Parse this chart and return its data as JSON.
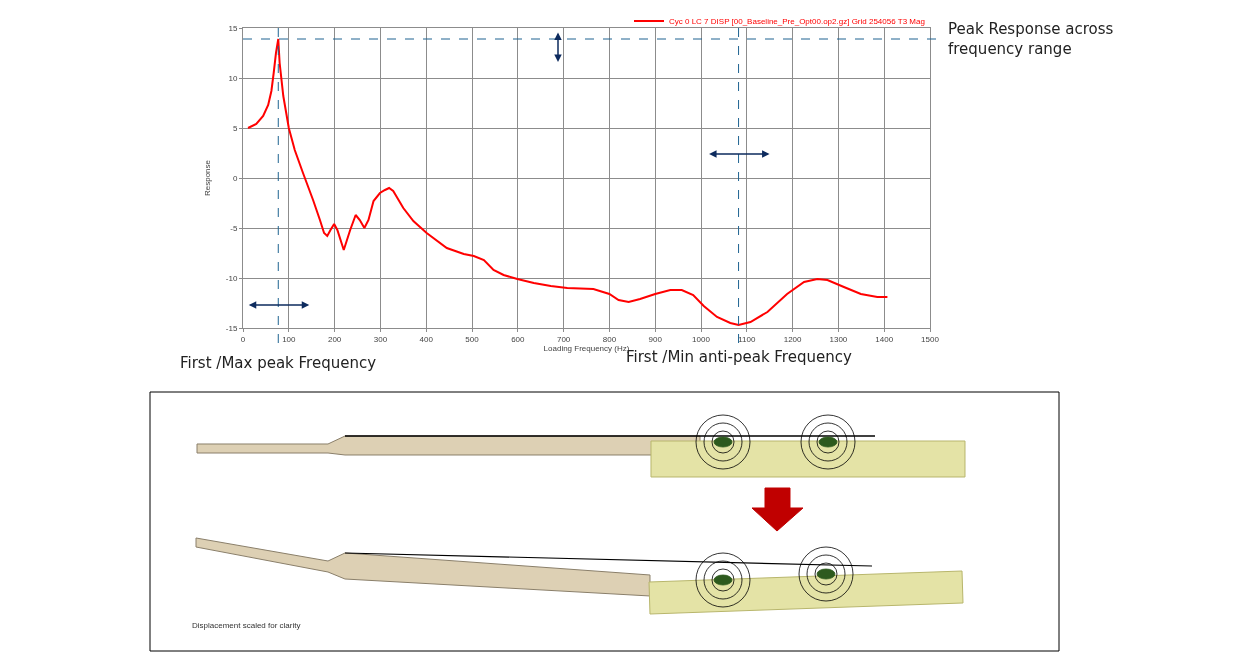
{
  "chart_data": {
    "type": "line",
    "xlabel": "Loading Frequency (Hz)",
    "ylabel": "Response",
    "xlim": [
      0,
      1500
    ],
    "xticks": [
      0,
      100,
      200,
      300,
      400,
      500,
      600,
      700,
      800,
      900,
      1000,
      1100,
      1200,
      1300,
      1400,
      1500
    ],
    "ylim": [
      -15,
      15
    ],
    "yticks": [
      -15,
      -10,
      -5,
      0,
      5,
      10,
      15
    ],
    "grid": true,
    "legend": "top right",
    "series": [
      {
        "name": "Cyc 0 LC 7 DISP [00_Baseline_Pre_Opt00.op2.gz] Grid 254056 T3 Mag",
        "color": "#ff0000",
        "x": [
          11,
          29,
          44,
          55,
          62,
          67,
          72,
          77,
          80,
          88,
          100,
          113,
          131,
          153,
          168,
          177,
          184,
          191,
          199,
          206,
          220,
          234,
          246,
          255,
          265,
          274,
          285,
          299,
          310,
          319,
          328,
          350,
          372,
          401,
          445,
          482,
          504,
          526,
          547,
          569,
          599,
          635,
          672,
          708,
          765,
          800,
          820,
          842,
          867,
          900,
          933,
          958,
          983,
          1006,
          1035,
          1064,
          1082,
          1108,
          1145,
          1188,
          1225,
          1254,
          1276,
          1312,
          1349,
          1385,
          1407
        ],
        "values": [
          5.0,
          5.4,
          6.2,
          7.3,
          8.7,
          10.5,
          12.5,
          13.9,
          11.5,
          8.2,
          5.0,
          2.8,
          0.5,
          -2.2,
          -4.2,
          -5.5,
          -5.8,
          -5.2,
          -4.6,
          -5.2,
          -7.2,
          -5.2,
          -3.7,
          -4.2,
          -5.0,
          -4.2,
          -2.3,
          -1.5,
          -1.2,
          -1.0,
          -1.3,
          -3.0,
          -4.3,
          -5.5,
          -7.0,
          -7.6,
          -7.8,
          -8.2,
          -9.2,
          -9.7,
          -10.1,
          -10.5,
          -10.8,
          -11.0,
          -11.1,
          -11.6,
          -12.2,
          -12.4,
          -12.1,
          -11.6,
          -11.2,
          -11.2,
          -11.7,
          -12.8,
          -13.9,
          -14.5,
          -14.7,
          -14.4,
          -13.4,
          -11.6,
          -10.4,
          -10.1,
          -10.2,
          -10.9,
          -11.6,
          -11.9,
          -11.9
        ]
      }
    ],
    "ref_lines": [
      {
        "axis": "x",
        "value": 77,
        "label": "First /Max peak Frequency",
        "color": "#1f6391",
        "line_style": "dashed"
      },
      {
        "axis": "x",
        "value": 1082,
        "label": "First /Min anti-peak Frequency",
        "color": "#1f6391",
        "line_style": "dashed"
      },
      {
        "axis": "y",
        "value": 13.9,
        "label": "Peak Response across\nfrequency range",
        "color": "#1f6391",
        "line_style": "dashed"
      }
    ],
    "annotations": [
      "Displacement scaled for clarity"
    ]
  }
}
